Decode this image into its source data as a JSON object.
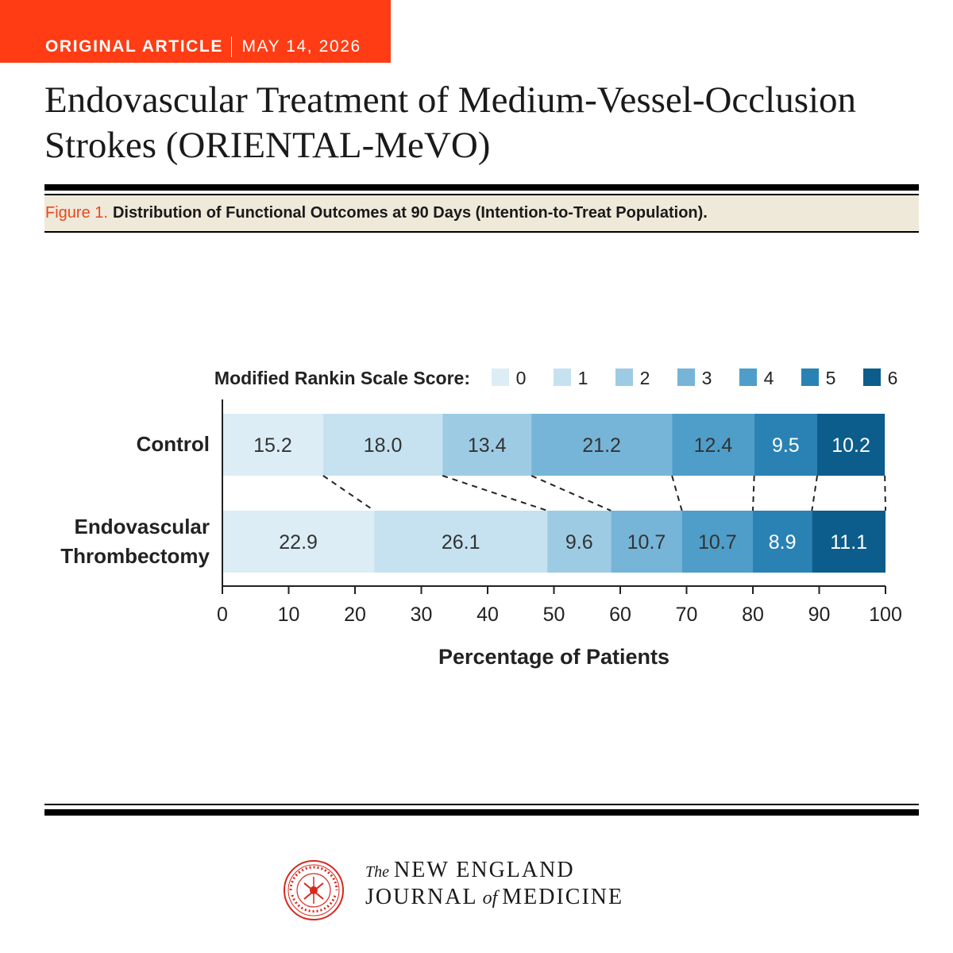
{
  "header": {
    "article_type": "ORIGINAL ARTICLE",
    "date": "MAY 14, 2026",
    "title": "Endovascular Treatment of Medium-Vessel-Occlusion Strokes (ORIENTAL-MeVO)"
  },
  "figure": {
    "label": "Figure 1.",
    "caption": "Distribution of Functional Outcomes at 90 Days (Intention-to-Treat Population)."
  },
  "colors": {
    "accent": "#ff3c14",
    "caption_band": "#efe9da",
    "scores": [
      "#dcedf6",
      "#c6e2f0",
      "#9ecbe4",
      "#76b5d8",
      "#4f9ec9",
      "#2a82b4",
      "#0c5d8b"
    ]
  },
  "chart_data": {
    "type": "bar",
    "orientation": "horizontal",
    "stacked": true,
    "legend_title": "Modified Rankin Scale Score:",
    "legend_placement": "top",
    "scores": [
      "0",
      "1",
      "2",
      "3",
      "4",
      "5",
      "6"
    ],
    "categories": [
      "Control",
      "Endovascular Thrombectomy"
    ],
    "category_lines": [
      [
        "Control"
      ],
      [
        "Endovascular",
        "Thrombectomy"
      ]
    ],
    "series": [
      {
        "name": "0",
        "values": [
          15.2,
          22.9
        ]
      },
      {
        "name": "1",
        "values": [
          18.0,
          26.1
        ]
      },
      {
        "name": "2",
        "values": [
          13.4,
          9.6
        ]
      },
      {
        "name": "3",
        "values": [
          21.2,
          10.7
        ]
      },
      {
        "name": "4",
        "values": [
          12.4,
          10.7
        ]
      },
      {
        "name": "5",
        "values": [
          9.5,
          8.9
        ]
      },
      {
        "name": "6",
        "values": [
          10.2,
          11.1
        ]
      }
    ],
    "xlabel": "Percentage of Patients",
    "xlim": [
      0,
      100
    ],
    "xticks": [
      0,
      10,
      20,
      30,
      40,
      50,
      60,
      70,
      80,
      90,
      100
    ],
    "grid": false
  },
  "footer": {
    "the": "The",
    "line1": "NEW ENGLAND",
    "line2a": "JOURNAL",
    "of": "of",
    "line2b": "MEDICINE"
  }
}
